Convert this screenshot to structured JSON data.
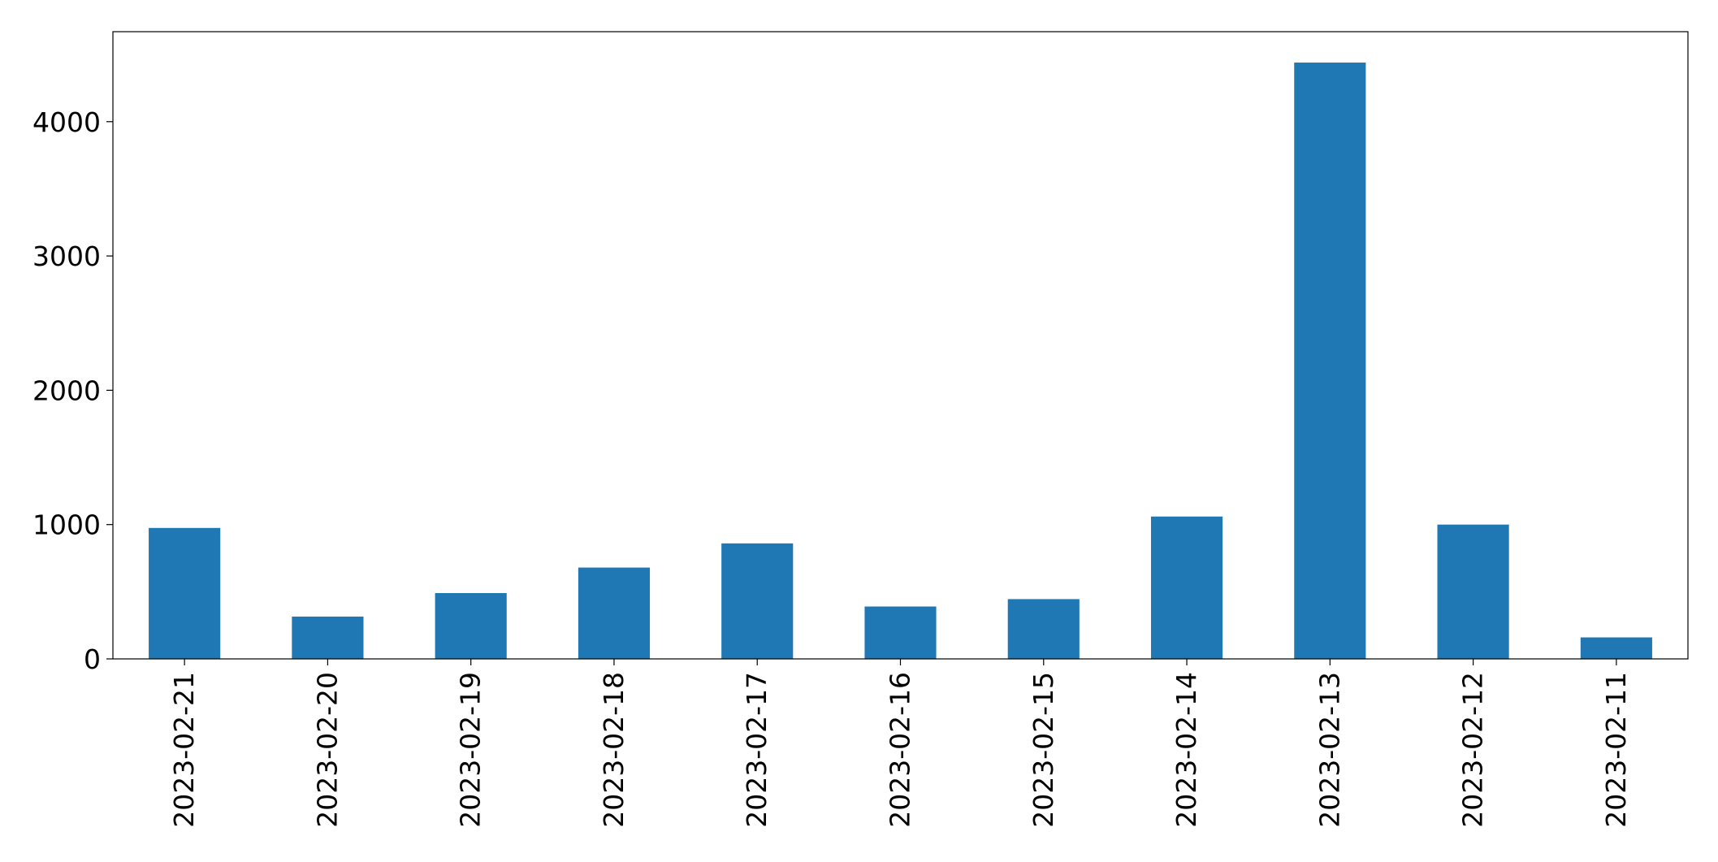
{
  "chart_data": {
    "type": "bar",
    "categories": [
      "2023-02-21",
      "2023-02-20",
      "2023-02-19",
      "2023-02-18",
      "2023-02-17",
      "2023-02-16",
      "2023-02-15",
      "2023-02-14",
      "2023-02-13",
      "2023-02-12",
      "2023-02-11"
    ],
    "values": [
      975,
      315,
      490,
      680,
      860,
      390,
      445,
      1060,
      4440,
      1000,
      160
    ],
    "title": "",
    "xlabel": "",
    "ylabel": "",
    "ylim": [
      0,
      4670
    ],
    "yticks": [
      0,
      1000,
      2000,
      3000,
      4000
    ],
    "x_tick_rotation": "vertical",
    "grid": false,
    "legend": "none",
    "colors": {
      "bar": "#1f77b4"
    }
  }
}
